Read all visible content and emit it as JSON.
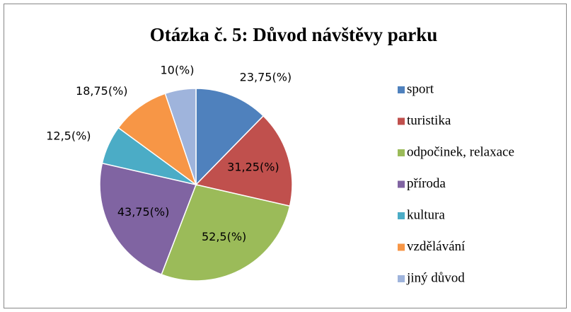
{
  "chart_data": {
    "type": "pie",
    "title": "Otázka č. 5: Důvod návštěvy parku",
    "categories": [
      "sport",
      "turistika",
      "odpočinek, relaxace",
      "příroda",
      "kultura",
      "vzdělávání",
      "jiný důvod"
    ],
    "values": [
      23.75,
      31.25,
      52.5,
      43.75,
      12.5,
      18.75,
      10
    ],
    "value_labels": [
      "23,75(%)",
      "31,25(%)",
      "52,5(%)",
      "43,75(%)",
      "12,5(%)",
      "18,75(%)",
      "10(%)"
    ],
    "colors": [
      "#4f81bd",
      "#c0504d",
      "#9bbb59",
      "#8064a2",
      "#4bacc6",
      "#f79646",
      "#9fb4dc"
    ],
    "legend": "right"
  }
}
